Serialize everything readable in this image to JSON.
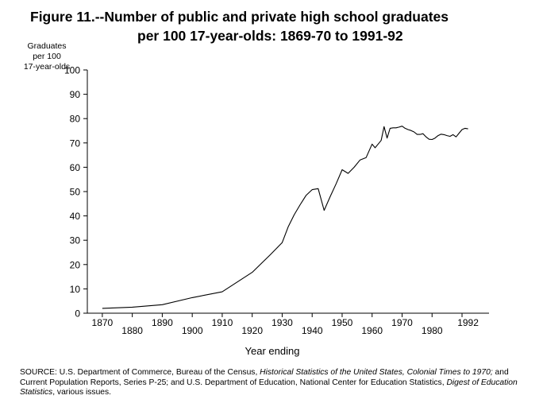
{
  "title": {
    "line1": "Figure 11.--Number of public and private high school graduates",
    "line2": "per 100 17-year-olds:  1869-70 to 1991-92"
  },
  "ylabel_lines": [
    "Graduates",
    "per 100",
    "17-year-olds"
  ],
  "xlabel": "Year ending",
  "source": {
    "p1": "SOURCE:  U.S. Department of Commerce, Bureau of the Census, ",
    "i1": "Historical Statistics of the United States, Colonial Times to 1970;",
    "p2": "  and Current Population Reports, Series P-25; and U.S. Department of Education, National Center for Education Statistics,  ",
    "i2": "Digest of Education Statistics",
    "p3": ", various issues."
  },
  "chart_data": {
    "type": "line",
    "title": "Figure 11.--Number of public and private high school graduates per 100 17-year-olds:  1869-70 to 1991-92",
    "xlabel": "Year ending",
    "ylabel": "Graduates per 100 17-year-olds",
    "xlim": [
      1865,
      1999
    ],
    "ylim": [
      0,
      100
    ],
    "yticks": [
      0,
      10,
      20,
      30,
      40,
      50,
      60,
      70,
      80,
      90,
      100
    ],
    "xticks_top": [
      "1870",
      "1890",
      "1910",
      "1930",
      "1950",
      "1970",
      "1992"
    ],
    "xticks_bottom": [
      "1880",
      "1900",
      "1920",
      "1940",
      "1960",
      "1980"
    ],
    "xtick_values": [
      1870,
      1880,
      1890,
      1900,
      1910,
      1920,
      1930,
      1940,
      1950,
      1960,
      1970,
      1980,
      1990
    ],
    "grid": false,
    "x": [
      1870,
      1880,
      1890,
      1900,
      1910,
      1920,
      1926,
      1930,
      1932,
      1934,
      1936,
      1938,
      1940,
      1942,
      1944,
      1946,
      1948,
      1950,
      1952,
      1954,
      1956,
      1958,
      1960,
      1961,
      1962,
      1963,
      1964,
      1965,
      1966,
      1967,
      1968,
      1969,
      1970,
      1971,
      1972,
      1973,
      1974,
      1975,
      1976,
      1977,
      1978,
      1979,
      1980,
      1981,
      1982,
      1983,
      1984,
      1985,
      1986,
      1987,
      1988,
      1989,
      1990,
      1991,
      1992
    ],
    "y": [
      2.0,
      2.5,
      3.5,
      6.4,
      8.8,
      16.8,
      24.0,
      29.0,
      35.5,
      40.5,
      44.6,
      48.5,
      50.8,
      51.2,
      42.3,
      47.9,
      53.2,
      59.0,
      57.5,
      60.0,
      63.0,
      64.0,
      69.5,
      68.0,
      69.5,
      71.0,
      76.7,
      72.0,
      76.0,
      76.2,
      76.2,
      76.5,
      76.9,
      76.0,
      75.5,
      75.1,
      74.5,
      73.5,
      73.5,
      73.8,
      72.5,
      71.5,
      71.4,
      72.0,
      73.0,
      73.6,
      73.4,
      73.0,
      72.7,
      73.4,
      72.5,
      74.0,
      75.5,
      76.0,
      75.8
    ]
  }
}
